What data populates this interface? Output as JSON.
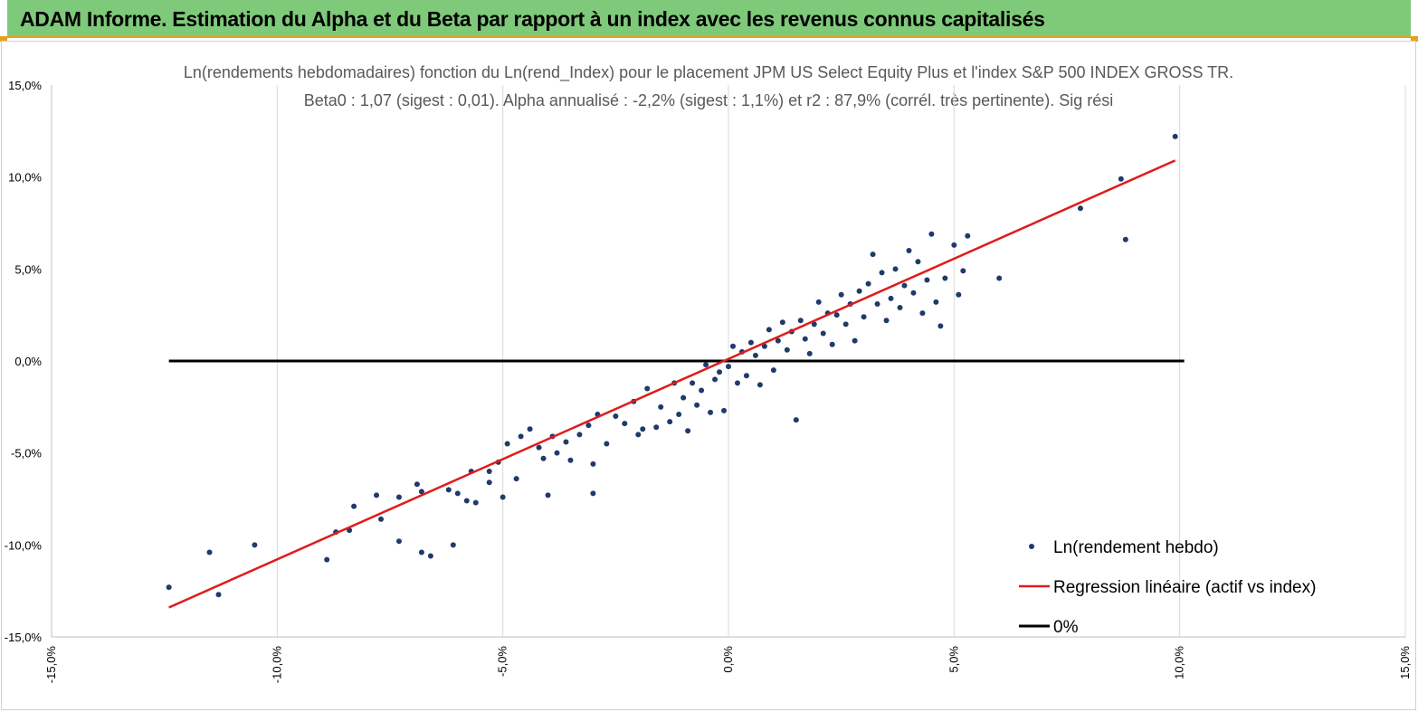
{
  "header": {
    "title": "ADAM Informe. Estimation du Alpha et du Beta par rapport à un index avec les revenus connus capitalisés"
  },
  "colors": {
    "banner": "#7fc97a",
    "banner_border": "#e6a020",
    "points": "#1f3a6b",
    "regression": "#e01b1b",
    "zero_line": "#000000"
  },
  "chart_data": {
    "type": "scatter",
    "title_line1": "Ln(rendements hebdomadaires) fonction du Ln(rend_Index) pour le placement JPM US Select Equity Plus et l'index S&P 500 INDEX GROSS TR.",
    "title_line2": "Beta0 : 1,07 (sigest : 0,01). Alpha annualisé : -2,2% (sigest : 1,1%) et r2 : 87,9% (corrél. très pertinente). Sig rési",
    "xlim": [
      -15,
      15
    ],
    "ylim": [
      -15,
      15
    ],
    "x_ticks": [
      "-15,0%",
      "-10,0%",
      "-5,0%",
      "0,0%",
      "5,0%",
      "10,0%",
      "15,0%"
    ],
    "y_ticks": [
      "15,0%",
      "10,0%",
      "5,0%",
      "0,0%",
      "-5,0%",
      "-10,0%",
      "-15,0%"
    ],
    "grid": "vertical",
    "legend_position": "bottom-right",
    "series": [
      {
        "name": "Ln(rendement hebdo)",
        "kind": "points",
        "points": [
          [
            -12.4,
            -12.3
          ],
          [
            -11.5,
            -10.4
          ],
          [
            -11.3,
            -12.7
          ],
          [
            -10.5,
            -10.0
          ],
          [
            -8.9,
            -10.8
          ],
          [
            -8.7,
            -9.3
          ],
          [
            -8.4,
            -9.2
          ],
          [
            -8.3,
            -7.9
          ],
          [
            -7.8,
            -7.3
          ],
          [
            -7.7,
            -8.6
          ],
          [
            -7.3,
            -7.4
          ],
          [
            -7.3,
            -9.8
          ],
          [
            -6.9,
            -6.7
          ],
          [
            -6.8,
            -7.1
          ],
          [
            -6.8,
            -10.4
          ],
          [
            -6.6,
            -10.6
          ],
          [
            -6.2,
            -7.0
          ],
          [
            -6.1,
            -10.0
          ],
          [
            -6.0,
            -7.2
          ],
          [
            -5.8,
            -7.6
          ],
          [
            -5.7,
            -6.0
          ],
          [
            -5.6,
            -7.7
          ],
          [
            -5.3,
            -6.6
          ],
          [
            -5.3,
            -6.0
          ],
          [
            -5.1,
            -5.5
          ],
          [
            -5.0,
            -7.4
          ],
          [
            -4.9,
            -4.5
          ],
          [
            -4.7,
            -6.4
          ],
          [
            -4.6,
            -4.1
          ],
          [
            -4.4,
            -3.7
          ],
          [
            -4.2,
            -4.7
          ],
          [
            -4.1,
            -5.3
          ],
          [
            -4.0,
            -7.3
          ],
          [
            -3.9,
            -4.1
          ],
          [
            -3.8,
            -5.0
          ],
          [
            -3.6,
            -4.4
          ],
          [
            -3.5,
            -5.4
          ],
          [
            -3.3,
            -4.0
          ],
          [
            -3.1,
            -3.5
          ],
          [
            -3.0,
            -7.2
          ],
          [
            -3.0,
            -5.6
          ],
          [
            -2.9,
            -2.9
          ],
          [
            -2.7,
            -4.5
          ],
          [
            -2.5,
            -3.0
          ],
          [
            -2.3,
            -3.4
          ],
          [
            -2.1,
            -2.2
          ],
          [
            -2.0,
            -4.0
          ],
          [
            -1.9,
            -3.7
          ],
          [
            -1.8,
            -1.5
          ],
          [
            -1.6,
            -3.6
          ],
          [
            -1.5,
            -2.5
          ],
          [
            -1.3,
            -3.3
          ],
          [
            -1.2,
            -1.2
          ],
          [
            -1.1,
            -2.9
          ],
          [
            -1.0,
            -2.0
          ],
          [
            -0.9,
            -3.8
          ],
          [
            -0.8,
            -1.2
          ],
          [
            -0.7,
            -2.4
          ],
          [
            -0.6,
            -1.6
          ],
          [
            -0.5,
            -0.2
          ],
          [
            -0.4,
            -2.8
          ],
          [
            -0.3,
            -1.0
          ],
          [
            -0.2,
            -0.6
          ],
          [
            -0.1,
            -2.7
          ],
          [
            0.0,
            -0.3
          ],
          [
            0.1,
            0.8
          ],
          [
            0.2,
            -1.2
          ],
          [
            0.3,
            0.5
          ],
          [
            0.4,
            -0.8
          ],
          [
            0.5,
            1.0
          ],
          [
            0.6,
            0.3
          ],
          [
            0.7,
            -1.3
          ],
          [
            0.8,
            0.8
          ],
          [
            0.9,
            1.7
          ],
          [
            1.0,
            -0.5
          ],
          [
            1.1,
            1.1
          ],
          [
            1.2,
            2.1
          ],
          [
            1.3,
            0.6
          ],
          [
            1.4,
            1.6
          ],
          [
            1.5,
            -3.2
          ],
          [
            1.6,
            2.2
          ],
          [
            1.7,
            1.2
          ],
          [
            1.8,
            0.4
          ],
          [
            1.9,
            2.0
          ],
          [
            2.0,
            3.2
          ],
          [
            2.1,
            1.5
          ],
          [
            2.2,
            2.6
          ],
          [
            2.3,
            0.9
          ],
          [
            2.4,
            2.5
          ],
          [
            2.5,
            3.6
          ],
          [
            2.6,
            2.0
          ],
          [
            2.7,
            3.1
          ],
          [
            2.8,
            1.1
          ],
          [
            2.9,
            3.8
          ],
          [
            3.0,
            2.4
          ],
          [
            3.1,
            4.2
          ],
          [
            3.2,
            5.8
          ],
          [
            3.3,
            3.1
          ],
          [
            3.4,
            4.8
          ],
          [
            3.5,
            2.2
          ],
          [
            3.6,
            3.4
          ],
          [
            3.7,
            5.0
          ],
          [
            3.8,
            2.9
          ],
          [
            3.9,
            4.1
          ],
          [
            4.0,
            6.0
          ],
          [
            4.1,
            3.7
          ],
          [
            4.2,
            5.4
          ],
          [
            4.3,
            2.6
          ],
          [
            4.4,
            4.4
          ],
          [
            4.5,
            6.9
          ],
          [
            4.6,
            3.2
          ],
          [
            4.7,
            1.9
          ],
          [
            4.8,
            4.5
          ],
          [
            5.0,
            6.3
          ],
          [
            5.1,
            3.6
          ],
          [
            5.2,
            4.9
          ],
          [
            5.3,
            6.8
          ],
          [
            6.0,
            4.5
          ],
          [
            7.8,
            8.3
          ],
          [
            8.7,
            9.9
          ],
          [
            8.8,
            6.6
          ],
          [
            9.9,
            12.2
          ]
        ]
      },
      {
        "name": "Regression linéaire (actif vs index)",
        "kind": "line",
        "points": [
          [
            -12.4,
            -13.4
          ],
          [
            9.9,
            10.9
          ]
        ]
      },
      {
        "name": "0%",
        "kind": "line",
        "points": [
          [
            -12.4,
            0
          ],
          [
            10.1,
            0
          ]
        ]
      }
    ]
  }
}
